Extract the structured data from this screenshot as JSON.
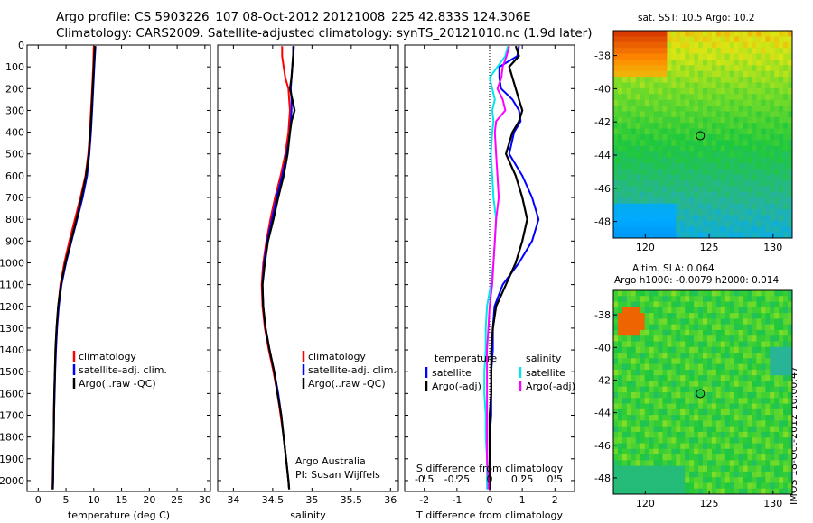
{
  "header": {
    "line1": "Argo profile: CS 5903226_107 08-Oct-2012 20121008_225 42.833S 124.306E",
    "line2": "Climatology: CARS2009. Satellite-adjusted climatology: synTS_20121010.nc (1.9d later)"
  },
  "side_label": "IMOS 18-Oct-2012 10:00:47",
  "colors": {
    "climatology": "#ff0000",
    "satellite": "#0000ff",
    "argo": "#000000",
    "sat_sal": "#00e5ee",
    "argo_sal": "#ff00ff"
  },
  "chart_data": [
    {
      "type": "line",
      "id": "temperature",
      "xlabel": "temperature (deg C)",
      "ylabel": "",
      "xlim": [
        -2,
        31
      ],
      "ylim": [
        2050,
        0
      ],
      "xticks": [
        0,
        5,
        10,
        15,
        20,
        25,
        30
      ],
      "yticks": [
        0,
        100,
        200,
        300,
        400,
        500,
        600,
        700,
        800,
        900,
        1000,
        1100,
        1200,
        1300,
        1400,
        1500,
        1600,
        1700,
        1800,
        1900,
        2000
      ],
      "legend": [
        "climatology",
        "satellite-adj. clim.",
        "Argo(..raw -QC)"
      ],
      "depth": [
        5,
        100,
        200,
        300,
        400,
        500,
        600,
        700,
        800,
        900,
        1000,
        1100,
        1200,
        1300,
        1400,
        1500,
        1600,
        1700,
        1800,
        1900,
        2000,
        2040
      ],
      "series": [
        {
          "name": "climatology",
          "color": "red",
          "values": [
            10.0,
            9.9,
            9.7,
            9.5,
            9.3,
            9.0,
            8.5,
            7.6,
            6.6,
            5.6,
            4.7,
            4.0,
            3.6,
            3.3,
            3.1,
            3.0,
            2.9,
            2.8,
            2.8,
            2.7,
            2.6,
            2.6
          ]
        },
        {
          "name": "satellite-adj. clim.",
          "color": "blue",
          "values": [
            10.3,
            10.1,
            9.9,
            9.7,
            9.5,
            9.2,
            8.8,
            8.0,
            7.0,
            6.0,
            5.0,
            4.2,
            3.7,
            3.4,
            3.2,
            3.05,
            2.95,
            2.85,
            2.8,
            2.75,
            2.7,
            2.65
          ]
        },
        {
          "name": "Argo(..raw -QC)",
          "color": "black",
          "values": [
            10.2,
            10.0,
            9.8,
            9.6,
            9.4,
            9.1,
            8.6,
            7.8,
            6.9,
            5.9,
            4.9,
            4.1,
            3.6,
            3.3,
            3.1,
            3.0,
            2.9,
            2.85,
            2.8,
            2.7,
            2.65,
            2.6
          ]
        }
      ]
    },
    {
      "type": "line",
      "id": "salinity",
      "xlabel": "salinity",
      "xlim": [
        33.8,
        36.1
      ],
      "ylim": [
        2050,
        0
      ],
      "xticks": [
        34,
        34.5,
        35,
        35.5,
        36
      ],
      "legend": [
        "climatology",
        "satellite-adj. clim.",
        "Argo(..raw -QC)"
      ],
      "annotation": [
        "Argo Australia",
        "PI: Susan Wijffels"
      ],
      "depth": [
        5,
        50,
        100,
        150,
        200,
        250,
        300,
        350,
        400,
        500,
        600,
        700,
        800,
        900,
        1000,
        1100,
        1200,
        1300,
        1400,
        1500,
        1600,
        1700,
        1800,
        1900,
        2000,
        2040
      ],
      "series": [
        {
          "name": "climatology",
          "color": "red",
          "values": [
            34.62,
            34.62,
            34.64,
            34.66,
            34.7,
            34.71,
            34.72,
            34.71,
            34.7,
            34.66,
            34.6,
            34.53,
            34.47,
            34.42,
            34.38,
            34.36,
            34.37,
            34.4,
            34.45,
            34.51,
            34.56,
            34.6,
            34.64,
            34.67,
            34.7,
            34.71
          ]
        },
        {
          "name": "satellite-adj. clim.",
          "color": "blue",
          "values": [
            34.76,
            34.76,
            34.75,
            34.74,
            34.73,
            34.74,
            34.74,
            34.73,
            34.72,
            34.68,
            34.62,
            34.55,
            34.49,
            34.43,
            34.39,
            34.37,
            34.38,
            34.41,
            34.46,
            34.52,
            34.57,
            34.61,
            34.64,
            34.67,
            34.7,
            34.71
          ]
        },
        {
          "name": "Argo(..raw -QC)",
          "color": "black",
          "values": [
            34.77,
            34.76,
            34.75,
            34.74,
            34.72,
            34.75,
            34.78,
            34.74,
            34.72,
            34.69,
            34.64,
            34.57,
            34.51,
            34.44,
            34.4,
            34.37,
            34.38,
            34.41,
            34.46,
            34.52,
            34.56,
            34.61,
            34.64,
            34.67,
            34.7,
            34.71
          ]
        }
      ]
    },
    {
      "type": "line",
      "id": "difference",
      "xlabel": "T difference from climatology",
      "top_axis_label": "S difference from climatology",
      "xlim": [
        -2.6,
        2.6
      ],
      "ylim": [
        2050,
        0
      ],
      "xticks": [
        -2,
        -1,
        0,
        1,
        2
      ],
      "top_ticks": [
        -0.5,
        -0.25,
        0,
        0.25,
        0.5
      ],
      "legend_temperature": [
        "temperature",
        "satellite",
        "Argo(-adj)"
      ],
      "legend_salinity": [
        "salinity",
        "satellite",
        "Argo(-adj)"
      ],
      "depth": [
        5,
        50,
        100,
        150,
        200,
        250,
        300,
        350,
        400,
        500,
        600,
        700,
        800,
        900,
        1000,
        1100,
        1200,
        1300,
        1400,
        1500,
        1600,
        1700,
        1800,
        1900,
        2000,
        2040
      ],
      "series": [
        {
          "name": "temperature satellite",
          "color": "blue",
          "values": [
            0.9,
            0.85,
            0.3,
            0.3,
            0.35,
            0.7,
            0.9,
            0.95,
            0.75,
            0.6,
            1.0,
            1.3,
            1.5,
            1.3,
            0.9,
            0.4,
            0.15,
            0.1,
            0.1,
            0.05,
            0.05,
            0.05,
            0.0,
            0.0,
            0.0,
            0.0
          ]
        },
        {
          "name": "temperature Argo(-adj)",
          "color": "black",
          "values": [
            0.8,
            0.9,
            0.6,
            0.7,
            0.8,
            0.9,
            1.0,
            0.9,
            0.7,
            0.5,
            0.8,
            1.0,
            1.15,
            1.0,
            0.8,
            0.5,
            0.2,
            0.1,
            0.05,
            0.05,
            0.05,
            0.0,
            0.0,
            0.0,
            0.0,
            0.0
          ]
        },
        {
          "name": "salinity satellite",
          "color": "cyan",
          "values": [
            0.14,
            0.12,
            0.06,
            0.0,
            0.02,
            0.04,
            0.02,
            0.03,
            0.02,
            0.01,
            0.02,
            0.03,
            0.05,
            0.04,
            0.03,
            0.01,
            -0.02,
            -0.03,
            -0.03,
            -0.04,
            -0.04,
            -0.03,
            -0.03,
            -0.02,
            -0.02,
            -0.02
          ]
        },
        {
          "name": "salinity Argo(-adj)",
          "color": "magenta",
          "values": [
            0.15,
            0.13,
            0.1,
            0.09,
            0.06,
            0.1,
            0.12,
            0.05,
            0.04,
            0.05,
            0.06,
            0.07,
            0.05,
            0.04,
            0.03,
            0.02,
            0.0,
            -0.01,
            -0.02,
            -0.02,
            -0.02,
            -0.02,
            -0.02,
            -0.02,
            -0.01,
            -0.01
          ]
        }
      ]
    },
    {
      "type": "heatmap",
      "id": "sst-map",
      "title": "sat. SST: 10.5 Argo: 10.2",
      "xlim": [
        117.5,
        131.5
      ],
      "ylim": [
        -49,
        -36.5
      ],
      "xticks": [
        120,
        125,
        130
      ],
      "yticks": [
        -38,
        -40,
        -42,
        -44,
        -46,
        -48
      ],
      "marker": {
        "lon": 124.306,
        "lat": -42.833
      }
    },
    {
      "type": "heatmap",
      "id": "sla-map",
      "title_line1": "Altim. SLA: 0.064",
      "title_line2": "Argo h1000: -0.0079 h2000: 0.014",
      "xlim": [
        117.5,
        131.5
      ],
      "ylim": [
        -49,
        -36.5
      ],
      "xticks": [
        120,
        125,
        130
      ],
      "yticks": [
        -38,
        -40,
        -42,
        -44,
        -46,
        -48
      ],
      "marker": {
        "lon": 124.306,
        "lat": -42.833
      }
    }
  ]
}
